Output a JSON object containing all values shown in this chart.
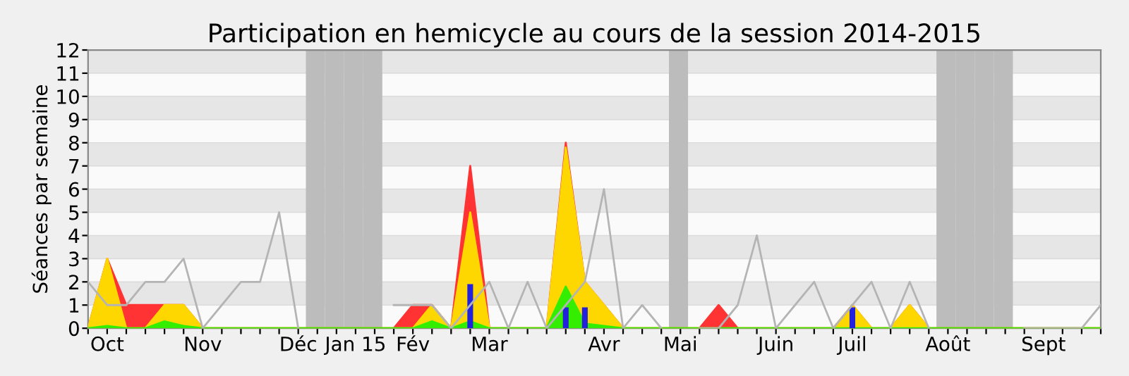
{
  "chart_data": {
    "type": "area",
    "title": "Participation en hemicycle au cours de la session 2014-2015",
    "ylabel": "Séances par semaine",
    "categories": [
      null,
      "Oct",
      null,
      null,
      null,
      null,
      "Nov",
      null,
      null,
      null,
      null,
      "Déc",
      null,
      null,
      "Jan 15",
      null,
      null,
      "Fév",
      null,
      null,
      null,
      "Mar",
      null,
      null,
      null,
      null,
      null,
      "Avr",
      null,
      null,
      null,
      "Mai",
      null,
      null,
      null,
      null,
      "Juin",
      null,
      null,
      null,
      "Juil",
      null,
      null,
      null,
      null,
      "Août",
      null,
      null,
      null,
      null,
      "Sept",
      null,
      null,
      null
    ],
    "series": [
      {
        "color": "#ff3333",
        "values": [
          0,
          3,
          1,
          1,
          1,
          1,
          0,
          0,
          0,
          0,
          0,
          0,
          0,
          0,
          0,
          0,
          0,
          1,
          1,
          0,
          7,
          0,
          0,
          0,
          0,
          8,
          2,
          1,
          0,
          0,
          0,
          0,
          0,
          1,
          0,
          0,
          0,
          0,
          0,
          0,
          1,
          0,
          0,
          1,
          0,
          0,
          0,
          0,
          0,
          0,
          0,
          0,
          0,
          0
        ]
      },
      {
        "color": "#ffd700",
        "values": [
          0,
          3,
          0,
          0,
          1,
          1,
          0,
          0,
          0,
          0,
          0,
          0,
          0,
          0,
          0,
          0,
          0,
          0,
          1,
          0,
          5,
          0,
          0,
          0,
          0,
          7.8,
          2,
          1,
          0,
          0,
          0,
          0,
          0,
          0,
          0,
          0,
          0,
          0,
          0,
          0,
          1,
          0,
          0,
          1,
          0,
          0,
          0,
          0,
          0,
          0,
          0,
          0,
          0,
          0
        ]
      },
      {
        "color": "#33ee00",
        "values": [
          0,
          0.1,
          0,
          0,
          0.3,
          0.1,
          0,
          0,
          0,
          0,
          0,
          0,
          0,
          0,
          0,
          0,
          0,
          0,
          0.3,
          0,
          0.3,
          0,
          0,
          0,
          0,
          1.8,
          0.2,
          0.1,
          0,
          0,
          0,
          0,
          0,
          0,
          0,
          0,
          0,
          0,
          0,
          0,
          0,
          0,
          0,
          0,
          0,
          0,
          0,
          0,
          0,
          0,
          0,
          0,
          0,
          0
        ]
      },
      {
        "type": "bar",
        "color": "#2222dd",
        "values": [
          null,
          null,
          null,
          null,
          null,
          null,
          null,
          null,
          null,
          null,
          null,
          null,
          null,
          null,
          null,
          null,
          null,
          null,
          null,
          null,
          1.9,
          null,
          null,
          null,
          null,
          0.9,
          0.9,
          null,
          null,
          null,
          null,
          null,
          null,
          null,
          null,
          null,
          null,
          null,
          null,
          null,
          0.9,
          null,
          null,
          null,
          null,
          null,
          null,
          null,
          null,
          null,
          null,
          null,
          null,
          null
        ]
      },
      {
        "type": "line",
        "color": "#b4b4b4",
        "values": [
          2,
          1,
          1,
          2,
          2,
          3,
          0,
          1,
          2,
          2,
          5,
          0,
          null,
          null,
          null,
          null,
          1,
          1,
          1,
          0,
          1,
          2,
          0,
          2,
          0,
          1,
          2,
          6,
          0,
          1,
          0,
          null,
          0,
          0,
          1,
          4,
          0,
          1,
          2,
          0,
          1,
          2,
          0,
          2,
          0,
          null,
          null,
          null,
          null,
          0,
          0,
          0,
          0,
          1
        ]
      }
    ],
    "ylim": [
      0,
      12
    ],
    "yticks": [
      0,
      1,
      2,
      3,
      4,
      5,
      6,
      7,
      8,
      9,
      10,
      11,
      12
    ],
    "grid": "y"
  }
}
